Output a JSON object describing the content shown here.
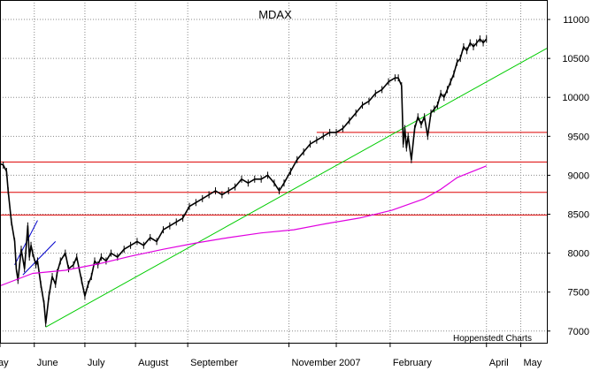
{
  "chart_data": {
    "type": "line",
    "title": "MDAX",
    "source_note": "Hoppenstedt Charts",
    "y_ticks": [
      7000,
      7500,
      8000,
      8500,
      9000,
      9500,
      10000,
      10500,
      11000
    ],
    "y_tick_labels": [
      "7000",
      "7500",
      "8000",
      "8500",
      "9000",
      "9500",
      "10000",
      "10500",
      "11000"
    ],
    "ylim": [
      6850,
      11250
    ],
    "x_months": [
      {
        "label": "ay",
        "x": 0
      },
      {
        "label": "June",
        "x": 21
      },
      {
        "label": "July",
        "x": 52
      },
      {
        "label": "August",
        "x": 83
      },
      {
        "label": "September",
        "x": 115
      },
      {
        "label": "November",
        "x": 177
      },
      {
        "label": "2007",
        "x": 206
      },
      {
        "label": "February",
        "x": 239
      },
      {
        "label": "April",
        "x": 298
      },
      {
        "label": "May",
        "x": 319
      }
    ],
    "xlim": [
      0,
      335
    ],
    "grid": true,
    "series": [
      {
        "kind": "price",
        "color": "#000000",
        "points": [
          [
            0,
            9150
          ],
          [
            2,
            9130
          ],
          [
            4,
            9050
          ],
          [
            5,
            8800
          ],
          [
            7,
            8400
          ],
          [
            9,
            8150
          ],
          [
            10,
            7800
          ],
          [
            11,
            7650
          ],
          [
            13,
            8050
          ],
          [
            15,
            7800
          ],
          [
            17,
            8350
          ],
          [
            18,
            7950
          ],
          [
            19,
            8100
          ],
          [
            20,
            8000
          ],
          [
            22,
            7850
          ],
          [
            23,
            7900
          ],
          [
            25,
            7600
          ],
          [
            27,
            7350
          ],
          [
            28,
            7100
          ],
          [
            30,
            7450
          ],
          [
            32,
            7700
          ],
          [
            34,
            7600
          ],
          [
            35,
            7750
          ],
          [
            37,
            7900
          ],
          [
            40,
            8000
          ],
          [
            42,
            7800
          ],
          [
            45,
            7850
          ],
          [
            47,
            7950
          ],
          [
            50,
            7650
          ],
          [
            52,
            7450
          ],
          [
            54,
            7600
          ],
          [
            56,
            7700
          ],
          [
            58,
            7900
          ],
          [
            60,
            7850
          ],
          [
            62,
            7950
          ],
          [
            65,
            7900
          ],
          [
            68,
            8000
          ],
          [
            72,
            7950
          ],
          [
            76,
            8050
          ],
          [
            80,
            8100
          ],
          [
            84,
            8150
          ],
          [
            88,
            8100
          ],
          [
            92,
            8200
          ],
          [
            96,
            8150
          ],
          [
            100,
            8300
          ],
          [
            104,
            8350
          ],
          [
            108,
            8400
          ],
          [
            112,
            8450
          ],
          [
            116,
            8600
          ],
          [
            120,
            8650
          ],
          [
            124,
            8700
          ],
          [
            128,
            8750
          ],
          [
            132,
            8800
          ],
          [
            136,
            8750
          ],
          [
            140,
            8800
          ],
          [
            144,
            8850
          ],
          [
            148,
            8950
          ],
          [
            152,
            8900
          ],
          [
            156,
            8950
          ],
          [
            160,
            8950
          ],
          [
            164,
            9000
          ],
          [
            168,
            8900
          ],
          [
            171,
            8800
          ],
          [
            174,
            8900
          ],
          [
            178,
            9050
          ],
          [
            182,
            9200
          ],
          [
            186,
            9300
          ],
          [
            190,
            9400
          ],
          [
            194,
            9450
          ],
          [
            198,
            9500
          ],
          [
            202,
            9550
          ],
          [
            206,
            9550
          ],
          [
            210,
            9600
          ],
          [
            214,
            9700
          ],
          [
            218,
            9800
          ],
          [
            222,
            9900
          ],
          [
            226,
            9950
          ],
          [
            230,
            10050
          ],
          [
            234,
            10100
          ],
          [
            238,
            10200
          ],
          [
            242,
            10250
          ],
          [
            244,
            10250
          ],
          [
            246,
            10150
          ],
          [
            247,
            9400
          ],
          [
            248,
            9600
          ],
          [
            249,
            9350
          ],
          [
            250,
            9500
          ],
          [
            252,
            9200
          ],
          [
            254,
            9600
          ],
          [
            256,
            9750
          ],
          [
            258,
            9650
          ],
          [
            260,
            9750
          ],
          [
            262,
            9500
          ],
          [
            264,
            9800
          ],
          [
            266,
            9850
          ],
          [
            268,
            9900
          ],
          [
            270,
            10050
          ],
          [
            272,
            10000
          ],
          [
            274,
            10100
          ],
          [
            276,
            10200
          ],
          [
            278,
            10300
          ],
          [
            280,
            10450
          ],
          [
            282,
            10500
          ],
          [
            284,
            10650
          ],
          [
            286,
            10600
          ],
          [
            288,
            10700
          ],
          [
            290,
            10650
          ],
          [
            292,
            10700
          ],
          [
            294,
            10750
          ],
          [
            296,
            10700
          ],
          [
            298,
            10750
          ]
        ]
      },
      {
        "kind": "moving_average",
        "color": "#e000e0",
        "points": [
          [
            0,
            7580
          ],
          [
            20,
            7740
          ],
          [
            40,
            7780
          ],
          [
            60,
            7860
          ],
          [
            80,
            7960
          ],
          [
            100,
            8050
          ],
          [
            120,
            8130
          ],
          [
            140,
            8200
          ],
          [
            160,
            8260
          ],
          [
            180,
            8300
          ],
          [
            200,
            8380
          ],
          [
            220,
            8450
          ],
          [
            240,
            8550
          ],
          [
            260,
            8700
          ],
          [
            270,
            8820
          ],
          [
            280,
            8970
          ],
          [
            298,
            9120
          ]
        ]
      }
    ],
    "trendlines": [
      {
        "color": "#00cc00",
        "from": [
          28,
          7050
        ],
        "to": [
          335,
          10630
        ]
      },
      {
        "color": "#0000cc",
        "from": [
          9,
          7850
        ],
        "to": [
          23,
          8420
        ]
      },
      {
        "color": "#0000cc",
        "from": [
          14,
          7720
        ],
        "to": [
          34,
          8150
        ]
      }
    ],
    "support_resistance_lines": [
      {
        "color": "#dd0000",
        "y": 9170,
        "x_from": 0,
        "x_to": 335
      },
      {
        "color": "#dd0000",
        "y": 8780,
        "x_from": 0,
        "x_to": 335
      },
      {
        "color": "#dd0000",
        "y": 8490,
        "x_from": 0,
        "x_to": 335
      },
      {
        "color": "#dd0000",
        "y": 9550,
        "x_from": 194,
        "x_to": 335
      }
    ]
  }
}
